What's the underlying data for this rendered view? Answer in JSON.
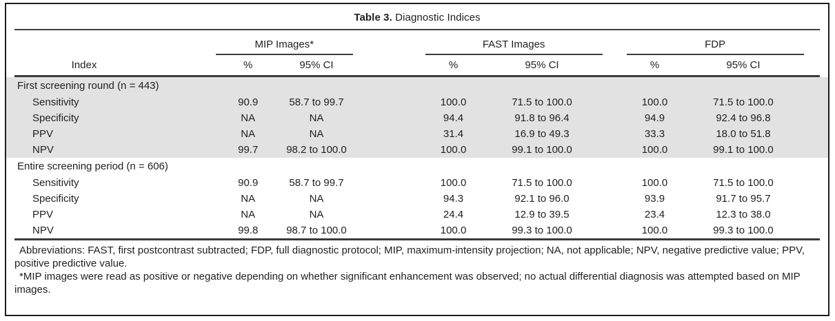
{
  "title": {
    "label": "Table 3.",
    "text": " Diagnostic Indices"
  },
  "table": {
    "index_header": "Index",
    "groups": {
      "mip": "MIP Images*",
      "fast": "FAST Images",
      "fdp": "FDP"
    },
    "subheaders": {
      "pct": "%",
      "ci": "95% CI"
    },
    "sections": [
      {
        "header": "First screening round (n = 443)",
        "rows": [
          {
            "index": "Sensitivity",
            "mip_pct": "90.9",
            "mip_ci": "58.7 to 99.7",
            "fast_pct": "100.0",
            "fast_ci": "71.5 to 100.0",
            "fdp_pct": "100.0",
            "fdp_ci": "71.5 to 100.0"
          },
          {
            "index": "Specificity",
            "mip_pct": "NA",
            "mip_ci": "NA",
            "fast_pct": "94.4",
            "fast_ci": "91.8 to 96.4",
            "fdp_pct": "94.9",
            "fdp_ci": "92.4 to 96.8"
          },
          {
            "index": "PPV",
            "mip_pct": "NA",
            "mip_ci": "NA",
            "fast_pct": "31.4",
            "fast_ci": "16.9 to 49.3",
            "fdp_pct": "33.3",
            "fdp_ci": "18.0 to 51.8"
          },
          {
            "index": "NPV",
            "mip_pct": "99.7",
            "mip_ci": "98.2 to 100.0",
            "fast_pct": "100.0",
            "fast_ci": "99.1 to 100.0",
            "fdp_pct": "100.0",
            "fdp_ci": "99.1 to 100.0"
          }
        ]
      },
      {
        "header": "Entire screening period (n = 606)",
        "rows": [
          {
            "index": "Sensitivity",
            "mip_pct": "90.9",
            "mip_ci": "58.7 to 99.7",
            "fast_pct": "100.0",
            "fast_ci": "71.5 to 100.0",
            "fdp_pct": "100.0",
            "fdp_ci": "71.5 to 100.0"
          },
          {
            "index": "Specificity",
            "mip_pct": "NA",
            "mip_ci": "NA",
            "fast_pct": "94.3",
            "fast_ci": "92.1 to 96.0",
            "fdp_pct": "93.9",
            "fdp_ci": "91.7 to 95.7"
          },
          {
            "index": "PPV",
            "mip_pct": "NA",
            "mip_ci": "NA",
            "fast_pct": "24.4",
            "fast_ci": "12.9 to 39.5",
            "fdp_pct": "23.4",
            "fdp_ci": "12.3 to 38.0"
          },
          {
            "index": "NPV",
            "mip_pct": "99.8",
            "mip_ci": "98.7 to 100.0",
            "fast_pct": "100.0",
            "fast_ci": "99.3 to 100.0",
            "fdp_pct": "100.0",
            "fdp_ci": "99.3 to 100.0"
          }
        ]
      }
    ]
  },
  "footnotes": {
    "abbreviations": "Abbreviations: FAST, first postcontrast subtracted; FDP, full diagnostic protocol; MIP, maximum-intensity projection; NA, not applicable; NPV, negative predictive value; PPV, positive predictive value.",
    "asterisk": "*MIP images were read as positive or negative depending on whether significant enhancement was observed; no actual differential diagnosis was attempted based on MIP images."
  },
  "colors": {
    "shaded_section_bg": "#e2e2e2",
    "rule": "#3d3d3d",
    "outer_border": "#1c1c1c",
    "text": "#1f1f1f"
  }
}
